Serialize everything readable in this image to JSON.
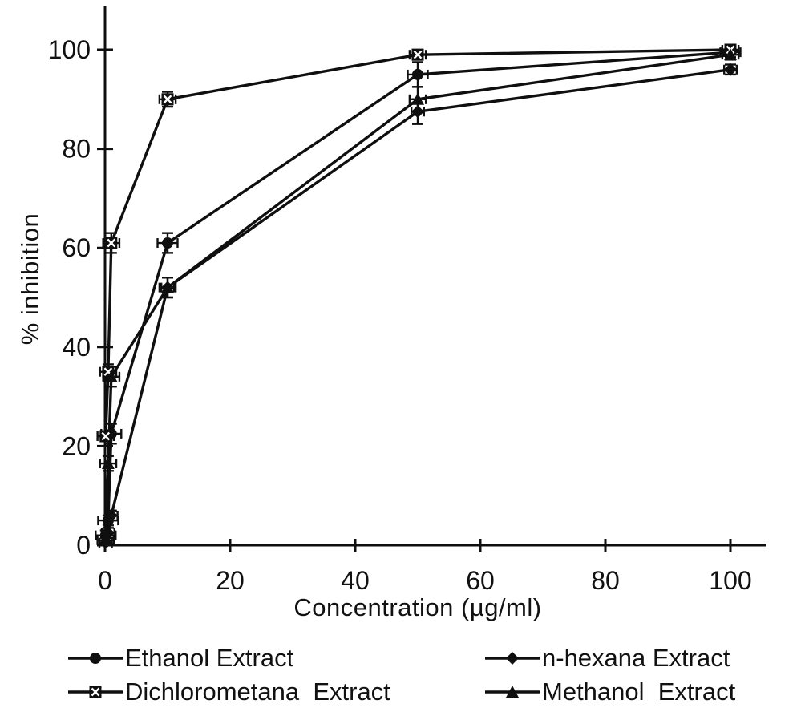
{
  "figure": {
    "background": "#ffffff",
    "ink": "#0f0f0f"
  },
  "chart_data": {
    "type": "line",
    "title": "",
    "xlabel": "Concentration (µg/ml)",
    "ylabel": "% inhibition",
    "grid": false,
    "legend_position": "below",
    "xlim": [
      0,
      105.5
    ],
    "ylim": [
      0,
      108.5
    ],
    "xticks": [
      "0",
      "20",
      "40",
      "60",
      "80",
      "100"
    ],
    "xtick_values": [
      0,
      20,
      40,
      60,
      80,
      100
    ],
    "yticks": [
      "0",
      "20",
      "40",
      "60",
      "80",
      "100"
    ],
    "ytick_values": [
      0,
      20,
      40,
      60,
      80,
      100
    ],
    "x": [
      0.1,
      0.5,
      1,
      10,
      50,
      100
    ],
    "series": [
      {
        "name": "Ethanol Extract",
        "marker": "circle",
        "values": [
          2,
          5,
          22.5,
          61,
          95,
          99.5
        ],
        "yerr": [
          1,
          1,
          2,
          2,
          2.5,
          1
        ],
        "xerr": 1.6
      },
      {
        "name": "n-hexana Extract",
        "marker": "diamond",
        "values": [
          0.5,
          2.5,
          6,
          52,
          87.5,
          96
        ],
        "yerr": [
          0.5,
          1,
          1,
          2,
          2.5,
          1
        ],
        "xerr": 1.0
      },
      {
        "name": "Dichlorometana  Extract",
        "marker": "square-x",
        "values": [
          22,
          35,
          61,
          90,
          99,
          100
        ],
        "yerr": [
          1,
          1.5,
          2,
          1.5,
          1,
          1
        ],
        "xerr": 1.3
      },
      {
        "name": "Methanol  Extract",
        "marker": "triangle",
        "values": [
          1,
          16.5,
          34,
          52,
          90,
          99
        ],
        "yerr": [
          0.5,
          1.5,
          2,
          2,
          2.5,
          1
        ],
        "xerr": 1.3
      }
    ],
    "legend_layout": [
      [
        0,
        1
      ],
      [
        2,
        3
      ]
    ]
  }
}
